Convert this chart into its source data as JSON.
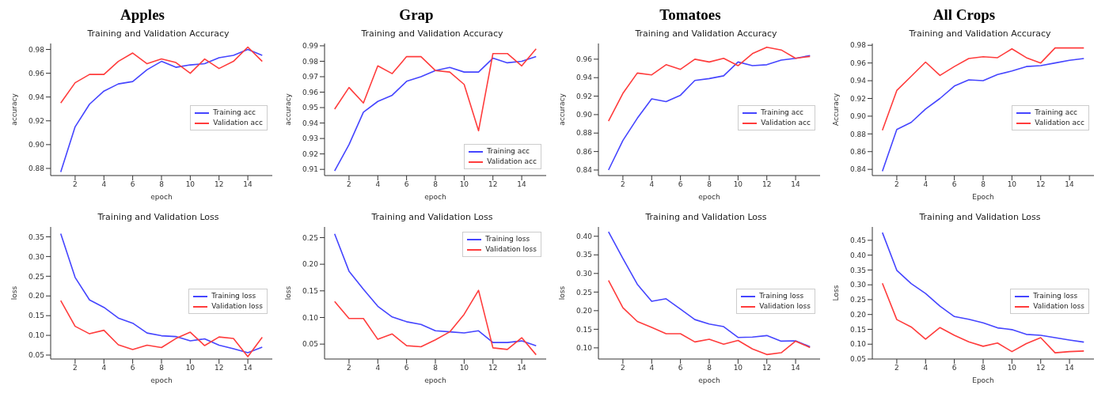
{
  "chart_data": [
    {
      "type": "line",
      "title": "Apples",
      "subtitle": "Training and Validation Accuracy",
      "xlabel": "epoch",
      "ylabel": "accuracy",
      "x": [
        1,
        2,
        3,
        4,
        5,
        6,
        7,
        8,
        9,
        10,
        11,
        12,
        13,
        14,
        15
      ],
      "xlim": [
        0.3,
        15.7
      ],
      "xticks": [
        2,
        4,
        6,
        8,
        10,
        12,
        14
      ],
      "ylim": [
        0.874,
        0.985
      ],
      "yticks": [
        0.88,
        {
          "value": 0.9,
          "label": "0.90"
        },
        0.92,
        0.94,
        0.96,
        0.98
      ],
      "legend": "right",
      "series": [
        {
          "name": "Training acc",
          "color": "#4545ff",
          "values": [
            0.877,
            0.915,
            0.934,
            0.945,
            0.951,
            0.953,
            0.963,
            0.97,
            0.965,
            0.967,
            0.968,
            0.973,
            0.975,
            0.98,
            0.975
          ]
        },
        {
          "name": "Validation acc",
          "color": "#ff3c3c",
          "values": [
            0.935,
            0.952,
            0.959,
            0.959,
            0.97,
            0.977,
            0.968,
            0.972,
            0.969,
            0.96,
            0.972,
            0.964,
            0.97,
            0.982,
            0.97
          ]
        }
      ]
    },
    {
      "type": "line",
      "title": "Grap",
      "subtitle": "Training and Validation Accuracy",
      "xlabel": "epoch",
      "ylabel": "accuracy",
      "x": [
        1,
        2,
        3,
        4,
        5,
        6,
        7,
        8,
        9,
        10,
        11,
        12,
        13,
        14,
        15
      ],
      "xlim": [
        0.3,
        15.7
      ],
      "xticks": [
        2,
        4,
        6,
        8,
        10,
        12,
        14
      ],
      "ylim": [
        0.906,
        0.9915
      ],
      "yticks": [
        0.91,
        0.92,
        0.93,
        0.94,
        0.95,
        0.96,
        0.97,
        0.98,
        0.99
      ],
      "legend": "bottom right",
      "series": [
        {
          "name": "Training acc",
          "color": "#4545ff",
          "values": [
            0.909,
            0.926,
            0.947,
            0.954,
            0.958,
            0.967,
            0.97,
            0.974,
            0.976,
            0.973,
            0.973,
            0.982,
            0.979,
            0.98,
            0.983
          ]
        },
        {
          "name": "Validation acc",
          "color": "#ff3c3c",
          "values": [
            0.949,
            0.963,
            0.953,
            0.977,
            0.972,
            0.983,
            0.983,
            0.974,
            0.973,
            0.965,
            0.935,
            0.985,
            0.985,
            0.977,
            0.988
          ]
        }
      ]
    },
    {
      "type": "line",
      "title": "Tomatoes",
      "subtitle": "Training and Validation Accuracy",
      "xlabel": "epoch",
      "ylabel": "accuracy",
      "x": [
        1,
        2,
        3,
        4,
        5,
        6,
        7,
        8,
        9,
        10,
        11,
        12,
        13,
        14,
        15
      ],
      "xlim": [
        0.3,
        15.7
      ],
      "xticks": [
        2,
        4,
        6,
        8,
        10,
        12,
        14
      ],
      "ylim": [
        0.834,
        0.977
      ],
      "yticks": [
        0.84,
        0.86,
        0.88,
        {
          "value": 0.9,
          "label": "0.90"
        },
        0.92,
        0.94,
        0.96
      ],
      "legend": "right",
      "series": [
        {
          "name": "Training acc",
          "color": "#4545ff",
          "values": [
            0.84,
            0.872,
            0.896,
            0.917,
            0.914,
            0.921,
            0.937,
            0.939,
            0.942,
            0.957,
            0.953,
            0.954,
            0.959,
            0.961,
            0.964
          ]
        },
        {
          "name": "Validation acc",
          "color": "#ff3c3c",
          "values": [
            0.893,
            0.923,
            0.945,
            0.943,
            0.954,
            0.949,
            0.96,
            0.957,
            0.961,
            0.953,
            0.966,
            0.973,
            0.97,
            0.961,
            0.963
          ]
        }
      ]
    },
    {
      "type": "line",
      "title": "All Crops",
      "subtitle": "Training and Validation Accuracy",
      "xlabel": "Epoch",
      "ylabel": "Accuracy",
      "x": [
        1,
        2,
        3,
        4,
        5,
        6,
        7,
        8,
        9,
        10,
        11,
        12,
        13,
        14,
        15
      ],
      "xlim": [
        0.3,
        15.7
      ],
      "xticks": [
        2,
        4,
        6,
        8,
        10,
        12,
        14
      ],
      "ylim": [
        0.833,
        0.982
      ],
      "yticks": [
        0.84,
        0.86,
        0.88,
        {
          "value": 0.9,
          "label": "0.90"
        },
        0.92,
        0.94,
        0.96,
        0.98
      ],
      "legend": "right",
      "series": [
        {
          "name": "Training acc",
          "color": "#4545ff",
          "values": [
            0.838,
            0.885,
            0.893,
            0.908,
            0.92,
            0.934,
            0.941,
            0.94,
            0.947,
            0.951,
            0.956,
            0.957,
            0.96,
            0.963,
            0.965
          ]
        },
        {
          "name": "Validation acc",
          "color": "#ff3c3c",
          "values": [
            0.884,
            0.929,
            0.945,
            0.961,
            0.946,
            0.956,
            0.965,
            0.967,
            0.966,
            0.976,
            0.966,
            0.96,
            0.977,
            0.977,
            0.977
          ]
        }
      ]
    },
    {
      "type": "line",
      "title": "Training and Validation Loss",
      "xlabel": "epoch",
      "ylabel": "loss",
      "x": [
        1,
        2,
        3,
        4,
        5,
        6,
        7,
        8,
        9,
        10,
        11,
        12,
        13,
        14,
        15
      ],
      "xlim": [
        0.3,
        15.7
      ],
      "xticks": [
        2,
        4,
        6,
        8,
        10,
        12,
        14
      ],
      "ylim": [
        0.04,
        0.375
      ],
      "yticks": [
        0.05,
        {
          "value": 0.1,
          "label": "0.10"
        },
        0.15,
        {
          "value": 0.2,
          "label": "0.20"
        },
        0.25,
        {
          "value": 0.3,
          "label": "0.30"
        },
        0.35
      ],
      "legend": "right",
      "series": [
        {
          "name": "Training loss",
          "color": "#4545ff",
          "values": [
            0.358,
            0.247,
            0.19,
            0.171,
            0.144,
            0.131,
            0.106,
            0.099,
            0.097,
            0.086,
            0.091,
            0.075,
            0.066,
            0.056,
            0.07
          ]
        },
        {
          "name": "Validation loss",
          "color": "#ff3c3c",
          "values": [
            0.188,
            0.123,
            0.104,
            0.113,
            0.076,
            0.064,
            0.075,
            0.069,
            0.092,
            0.108,
            0.074,
            0.096,
            0.092,
            0.046,
            0.095
          ]
        }
      ]
    },
    {
      "type": "line",
      "title": "Training and Validation Loss",
      "xlabel": "epoch",
      "ylabel": "loss",
      "x": [
        1,
        2,
        3,
        4,
        5,
        6,
        7,
        8,
        9,
        10,
        11,
        12,
        13,
        14,
        15
      ],
      "xlim": [
        0.3,
        15.7
      ],
      "xticks": [
        2,
        4,
        6,
        8,
        10,
        12,
        14
      ],
      "ylim": [
        0.022,
        0.27
      ],
      "yticks": [
        0.05,
        {
          "value": 0.1,
          "label": "0.10"
        },
        0.15,
        {
          "value": 0.2,
          "label": "0.20"
        },
        0.25
      ],
      "legend": "top right",
      "series": [
        {
          "name": "Training loss",
          "color": "#4545ff",
          "values": [
            0.257,
            0.187,
            0.153,
            0.121,
            0.101,
            0.092,
            0.087,
            0.075,
            0.073,
            0.071,
            0.075,
            0.053,
            0.053,
            0.056,
            0.047
          ]
        },
        {
          "name": "Validation loss",
          "color": "#ff3c3c",
          "values": [
            0.13,
            0.098,
            0.098,
            0.059,
            0.069,
            0.047,
            0.045,
            0.058,
            0.073,
            0.106,
            0.151,
            0.043,
            0.04,
            0.062,
            0.03
          ]
        }
      ]
    },
    {
      "type": "line",
      "title": "Training and Validation Loss",
      "xlabel": "epoch",
      "ylabel": "loss",
      "x": [
        1,
        2,
        3,
        4,
        5,
        6,
        7,
        8,
        9,
        10,
        11,
        12,
        13,
        14,
        15
      ],
      "xlim": [
        0.3,
        15.7
      ],
      "xticks": [
        2,
        4,
        6,
        8,
        10,
        12,
        14
      ],
      "ylim": [
        0.07,
        0.425
      ],
      "yticks": [
        {
          "value": 0.1,
          "label": "0.10"
        },
        0.15,
        {
          "value": 0.2,
          "label": "0.20"
        },
        0.25,
        {
          "value": 0.3,
          "label": "0.30"
        },
        0.35,
        {
          "value": 0.4,
          "label": "0.40"
        }
      ],
      "legend": "right",
      "series": [
        {
          "name": "Training loss",
          "color": "#4545ff",
          "values": [
            0.412,
            0.34,
            0.271,
            0.225,
            0.232,
            0.204,
            0.176,
            0.164,
            0.157,
            0.128,
            0.129,
            0.133,
            0.118,
            0.119,
            0.103
          ]
        },
        {
          "name": "Validation loss",
          "color": "#ff3c3c",
          "values": [
            0.281,
            0.208,
            0.171,
            0.155,
            0.138,
            0.138,
            0.116,
            0.123,
            0.11,
            0.12,
            0.097,
            0.082,
            0.087,
            0.118,
            0.101
          ]
        }
      ]
    },
    {
      "type": "line",
      "title": "Training and Validation Loss",
      "xlabel": "Epoch",
      "ylabel": "Loss",
      "x": [
        1,
        2,
        3,
        4,
        5,
        6,
        7,
        8,
        9,
        10,
        11,
        12,
        13,
        14,
        15
      ],
      "xlim": [
        0.3,
        15.7
      ],
      "xticks": [
        2,
        4,
        6,
        8,
        10,
        12,
        14
      ],
      "ylim": [
        0.05,
        0.495
      ],
      "yticks": [
        0.05,
        {
          "value": 0.1,
          "label": "0.10"
        },
        0.15,
        {
          "value": 0.2,
          "label": "0.20"
        },
        0.25,
        {
          "value": 0.3,
          "label": "0.30"
        },
        0.35,
        {
          "value": 0.4,
          "label": "0.40"
        },
        0.45
      ],
      "legend": "right",
      "series": [
        {
          "name": "Training loss",
          "color": "#4545ff",
          "values": [
            0.476,
            0.349,
            0.304,
            0.271,
            0.228,
            0.193,
            0.184,
            0.172,
            0.155,
            0.149,
            0.133,
            0.13,
            0.122,
            0.114,
            0.107
          ]
        },
        {
          "name": "Validation loss",
          "color": "#ff3c3c",
          "values": [
            0.305,
            0.183,
            0.158,
            0.117,
            0.156,
            0.13,
            0.108,
            0.093,
            0.104,
            0.075,
            0.102,
            0.122,
            0.071,
            0.075,
            0.077
          ]
        }
      ]
    }
  ]
}
